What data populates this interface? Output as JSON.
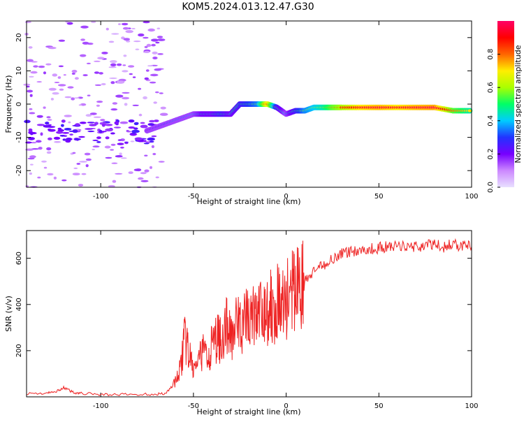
{
  "title": "KOM5.2024.013.12.47.G30",
  "colors": {
    "snr_line": "#ee2222",
    "colorbar_stops": [
      "#e8e0ff",
      "#cc88ff",
      "#7700ff",
      "#2233ff",
      "#00ccff",
      "#00ff66",
      "#aaff00",
      "#ffee00",
      "#ff6600",
      "#ff0000",
      "#ff0066"
    ]
  },
  "chart_data": [
    {
      "type": "heatmap",
      "xlabel": "Height of straight line (km)",
      "ylabel": "Frequency (Hz)",
      "xlim": [
        -140,
        100
      ],
      "ylim": [
        -25,
        25
      ],
      "xticks": [
        -100,
        -50,
        0,
        50,
        100
      ],
      "yticks": [
        -20,
        -10,
        0,
        10,
        20
      ],
      "colorbar": {
        "label": "Normalized spectral amplitude",
        "range": [
          0,
          1
        ],
        "ticks": [
          0.0,
          0.2,
          0.4,
          0.6,
          0.8
        ]
      },
      "ridge": {
        "x": [
          -75,
          -70,
          -65,
          -60,
          -55,
          -50,
          -45,
          -40,
          -35,
          -30,
          -25,
          -20,
          -15,
          -10,
          -5,
          0,
          5,
          10,
          15,
          20,
          25,
          30,
          40,
          50,
          60,
          70,
          80,
          90,
          100
        ],
        "frequency": [
          -8,
          -7,
          -6,
          -5,
          -4,
          -3,
          -3,
          -3,
          -3,
          -3,
          0,
          0,
          0,
          0,
          -1,
          -3,
          -2,
          -2,
          -1,
          -1,
          -1,
          -1,
          -1,
          -1,
          -1,
          -1,
          -1,
          -2,
          -2
        ],
        "amplitude": [
          0.2,
          0.25,
          0.3,
          0.35,
          0.35,
          0.4,
          0.45,
          0.45,
          0.5,
          0.45,
          0.5,
          0.55,
          0.6,
          0.95,
          0.5,
          0.4,
          0.5,
          0.6,
          0.65,
          0.7,
          0.8,
          0.85,
          0.95,
          0.98,
          0.95,
          0.98,
          1.0,
          0.8,
          0.7
        ]
      }
    },
    {
      "type": "line",
      "xlabel": "Height of straight line (km)",
      "ylabel": "SNR (v/v)",
      "xlim": [
        -140,
        100
      ],
      "ylim": [
        0,
        720
      ],
      "xticks": [
        -100,
        -50,
        0,
        50,
        100
      ],
      "yticks": [
        200,
        400,
        600
      ],
      "series": [
        {
          "x": [
            -140,
            -130,
            -125,
            -120,
            -115,
            -110,
            -100,
            -90,
            -80,
            -70,
            -65,
            -60,
            -57,
            -55,
            -53,
            -50,
            -47,
            -45,
            -42,
            -40,
            -37,
            -35,
            -32,
            -30,
            -28,
            -25,
            -22,
            -20,
            -17,
            -15,
            -12,
            -10,
            -8,
            -5,
            -3,
            0,
            3,
            5,
            8,
            10,
            15,
            20,
            25,
            30,
            35,
            40,
            45,
            50,
            55,
            60,
            65,
            70,
            75,
            80,
            85,
            90,
            95,
            100
          ],
          "y": [
            15,
            15,
            20,
            40,
            20,
            15,
            10,
            10,
            10,
            12,
            15,
            60,
            120,
            250,
            200,
            120,
            150,
            200,
            180,
            220,
            260,
            250,
            300,
            280,
            300,
            310,
            330,
            340,
            360,
            340,
            370,
            380,
            400,
            420,
            380,
            430,
            440,
            460,
            480,
            500,
            540,
            570,
            600,
            620,
            630,
            635,
            640,
            645,
            650,
            650,
            655,
            650,
            655,
            660,
            650,
            660,
            655,
            650
          ]
        }
      ]
    }
  ]
}
